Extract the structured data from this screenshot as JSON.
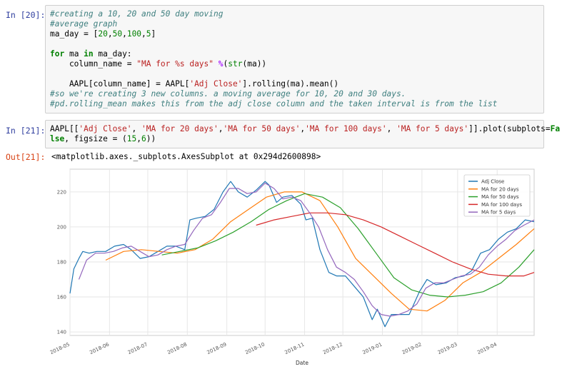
{
  "cell20": {
    "prompt": "In [20]:",
    "lines": {
      "l1": "#creating a 10, 20 and 50 day moving",
      "l2": "#average graph",
      "l3a": "ma_day = [",
      "l3b": "20",
      "l3c": ",",
      "l3d": "50",
      "l3e": ",",
      "l3f": "100",
      "l3g": ",",
      "l3h": "5",
      "l3i": "]",
      "l5a": "for",
      "l5b": " ma ",
      "l5c": "in",
      "l5d": " ma_day:",
      "l6a": "    column_name = ",
      "l6b": "\"MA for %s days\"",
      "l6c": " %",
      "l6d": "(",
      "l6e": "str",
      "l6f": "(ma))",
      "l8a": "    AAPL[column_name] = AAPL[",
      "l8b": "'Adj Close'",
      "l8c": "].rolling(ma).mean()",
      "l9": "#so we're creating 3 new columns. a moving average for 10, 20 and 30 days.",
      "l10": "#pd.rolling_mean makes this from the adj close column and the taken interval is from the list"
    }
  },
  "cell21": {
    "prompt": "In [21]:",
    "lines": {
      "a1": "AAPL[[",
      "a2": "'Adj Close'",
      "a3": ", ",
      "a4": "'MA for 20 days'",
      "a5": ",",
      "a6": "'MA for 50 days'",
      "a7": ",",
      "a8": "'MA for 100 days'",
      "a9": ", ",
      "a10": "'MA for 5 days'",
      "a11": "]].plot(subplots=",
      "a12": "Fa",
      "b1": "lse",
      "b2": ", figsize = (",
      "b3": "15",
      "b4": ",",
      "b5": "6",
      "b6": "))"
    }
  },
  "out21": {
    "prompt": "Out[21]:",
    "text": "<matplotlib.axes._subplots.AxesSubplot at 0x294d2600898>"
  },
  "chart_data": {
    "type": "line",
    "xlabel": "Date",
    "ylabel": "",
    "ylim": [
      138,
      233
    ],
    "yticks": [
      140,
      160,
      180,
      200,
      220
    ],
    "xticks": [
      "2018-05",
      "2018-06",
      "2018-07",
      "2018-08",
      "2018-09",
      "2018-10",
      "2018-11",
      "2018-12",
      "2019-01",
      "2019-02",
      "2019-03",
      "2019-04"
    ],
    "x_range": [
      "2018-05-01",
      "2019-04-30"
    ],
    "grid": true,
    "legend": "top-right",
    "series": [
      {
        "name": "Adj Close",
        "color": "#1f77b4",
        "x": [
          "2018-05-01",
          "2018-05-04",
          "2018-05-08",
          "2018-05-11",
          "2018-05-16",
          "2018-05-22",
          "2018-05-29",
          "2018-06-05",
          "2018-06-12",
          "2018-06-18",
          "2018-06-25",
          "2018-07-02",
          "2018-07-09",
          "2018-07-16",
          "2018-07-23",
          "2018-07-30",
          "2018-08-03",
          "2018-08-08",
          "2018-08-15",
          "2018-08-22",
          "2018-08-29",
          "2018-09-04",
          "2018-09-10",
          "2018-09-17",
          "2018-09-24",
          "2018-10-01",
          "2018-10-04",
          "2018-10-10",
          "2018-10-15",
          "2018-10-22",
          "2018-10-29",
          "2018-11-02",
          "2018-11-07",
          "2018-11-13",
          "2018-11-20",
          "2018-11-26",
          "2018-12-03",
          "2018-12-10",
          "2018-12-17",
          "2018-12-24",
          "2018-12-28",
          "2019-01-03",
          "2019-01-08",
          "2019-01-15",
          "2019-01-22",
          "2019-01-30",
          "2019-02-05",
          "2019-02-12",
          "2019-02-20",
          "2019-02-27",
          "2019-03-06",
          "2019-03-12",
          "2019-03-19",
          "2019-03-26",
          "2019-04-02",
          "2019-04-09",
          "2019-04-16",
          "2019-04-23",
          "2019-04-30"
        ],
        "values": [
          162,
          176,
          182,
          186,
          185,
          186,
          186,
          189,
          190,
          187,
          182,
          183,
          186,
          189,
          189,
          187,
          204,
          205,
          206,
          210,
          220,
          226,
          220,
          217,
          221,
          226,
          224,
          214,
          217,
          218,
          213,
          204,
          205,
          187,
          174,
          172,
          172,
          166,
          160,
          147,
          153,
          143,
          150,
          150,
          150,
          163,
          170,
          167,
          168,
          171,
          172,
          175,
          185,
          187,
          193,
          197,
          199,
          204,
          203
        ]
      },
      {
        "name": "MA for 20 days",
        "color": "#ff7f0e",
        "x": [
          "2018-05-29",
          "2018-06-12",
          "2018-06-26",
          "2018-07-10",
          "2018-07-24",
          "2018-08-07",
          "2018-08-21",
          "2018-09-04",
          "2018-09-18",
          "2018-10-02",
          "2018-10-16",
          "2018-10-30",
          "2018-11-13",
          "2018-11-27",
          "2018-12-11",
          "2018-12-25",
          "2019-01-08",
          "2019-01-22",
          "2019-02-05",
          "2019-02-19",
          "2019-03-05",
          "2019-03-19",
          "2019-04-02",
          "2019-04-16",
          "2019-04-30"
        ],
        "values": [
          181,
          186,
          187,
          186,
          185,
          187,
          193,
          203,
          210,
          217,
          220,
          220,
          215,
          200,
          182,
          172,
          162,
          153,
          152,
          158,
          168,
          174,
          182,
          190,
          199
        ]
      },
      {
        "name": "MA for 50 days",
        "color": "#2ca02c",
        "x": [
          "2018-07-12",
          "2018-07-26",
          "2018-08-09",
          "2018-08-23",
          "2018-09-06",
          "2018-09-20",
          "2018-10-04",
          "2018-10-18",
          "2018-11-01",
          "2018-11-15",
          "2018-11-29",
          "2018-12-13",
          "2018-12-27",
          "2019-01-10",
          "2019-01-24",
          "2019-02-07",
          "2019-02-21",
          "2019-03-07",
          "2019-03-21",
          "2019-04-04",
          "2019-04-18",
          "2019-04-30"
        ],
        "values": [
          184,
          186,
          188,
          192,
          197,
          203,
          210,
          215,
          219,
          217,
          211,
          199,
          185,
          171,
          164,
          161,
          160,
          161,
          163,
          168,
          177,
          187
        ]
      },
      {
        "name": "MA for 100 days",
        "color": "#d62728",
        "x": [
          "2018-09-24",
          "2018-10-08",
          "2018-10-22",
          "2018-11-05",
          "2018-11-19",
          "2018-12-03",
          "2018-12-17",
          "2018-12-31",
          "2019-01-14",
          "2019-01-28",
          "2019-02-11",
          "2019-02-25",
          "2019-03-11",
          "2019-03-25",
          "2019-04-08",
          "2019-04-22",
          "2019-04-30"
        ],
        "values": [
          201,
          204,
          206,
          208,
          208,
          207,
          204,
          200,
          195,
          190,
          185,
          180,
          176,
          173,
          172,
          172,
          174
        ]
      },
      {
        "name": "MA for 5 days",
        "color": "#9467bd",
        "x": [
          "2018-05-08",
          "2018-05-14",
          "2018-05-21",
          "2018-05-28",
          "2018-06-04",
          "2018-06-11",
          "2018-06-18",
          "2018-06-25",
          "2018-07-02",
          "2018-07-09",
          "2018-07-16",
          "2018-07-23",
          "2018-07-30",
          "2018-08-06",
          "2018-08-13",
          "2018-08-20",
          "2018-08-27",
          "2018-09-03",
          "2018-09-10",
          "2018-09-17",
          "2018-09-24",
          "2018-10-01",
          "2018-10-08",
          "2018-10-15",
          "2018-10-22",
          "2018-10-29",
          "2018-11-05",
          "2018-11-12",
          "2018-11-19",
          "2018-11-26",
          "2018-12-03",
          "2018-12-10",
          "2018-12-17",
          "2018-12-24",
          "2018-12-31",
          "2019-01-07",
          "2019-01-14",
          "2019-01-21",
          "2019-01-28",
          "2019-02-04",
          "2019-02-11",
          "2019-02-18",
          "2019-02-25",
          "2019-03-04",
          "2019-03-11",
          "2019-03-18",
          "2019-03-25",
          "2019-04-01",
          "2019-04-08",
          "2019-04-15",
          "2019-04-22",
          "2019-04-30"
        ],
        "values": [
          170,
          181,
          185,
          185,
          186,
          188,
          189,
          186,
          183,
          184,
          187,
          189,
          190,
          198,
          205,
          207,
          214,
          222,
          222,
          219,
          220,
          225,
          222,
          216,
          217,
          215,
          208,
          200,
          187,
          177,
          174,
          170,
          163,
          155,
          150,
          149,
          150,
          152,
          156,
          165,
          168,
          168,
          170,
          172,
          173,
          177,
          184,
          189,
          193,
          198,
          201,
          204
        ]
      }
    ]
  }
}
